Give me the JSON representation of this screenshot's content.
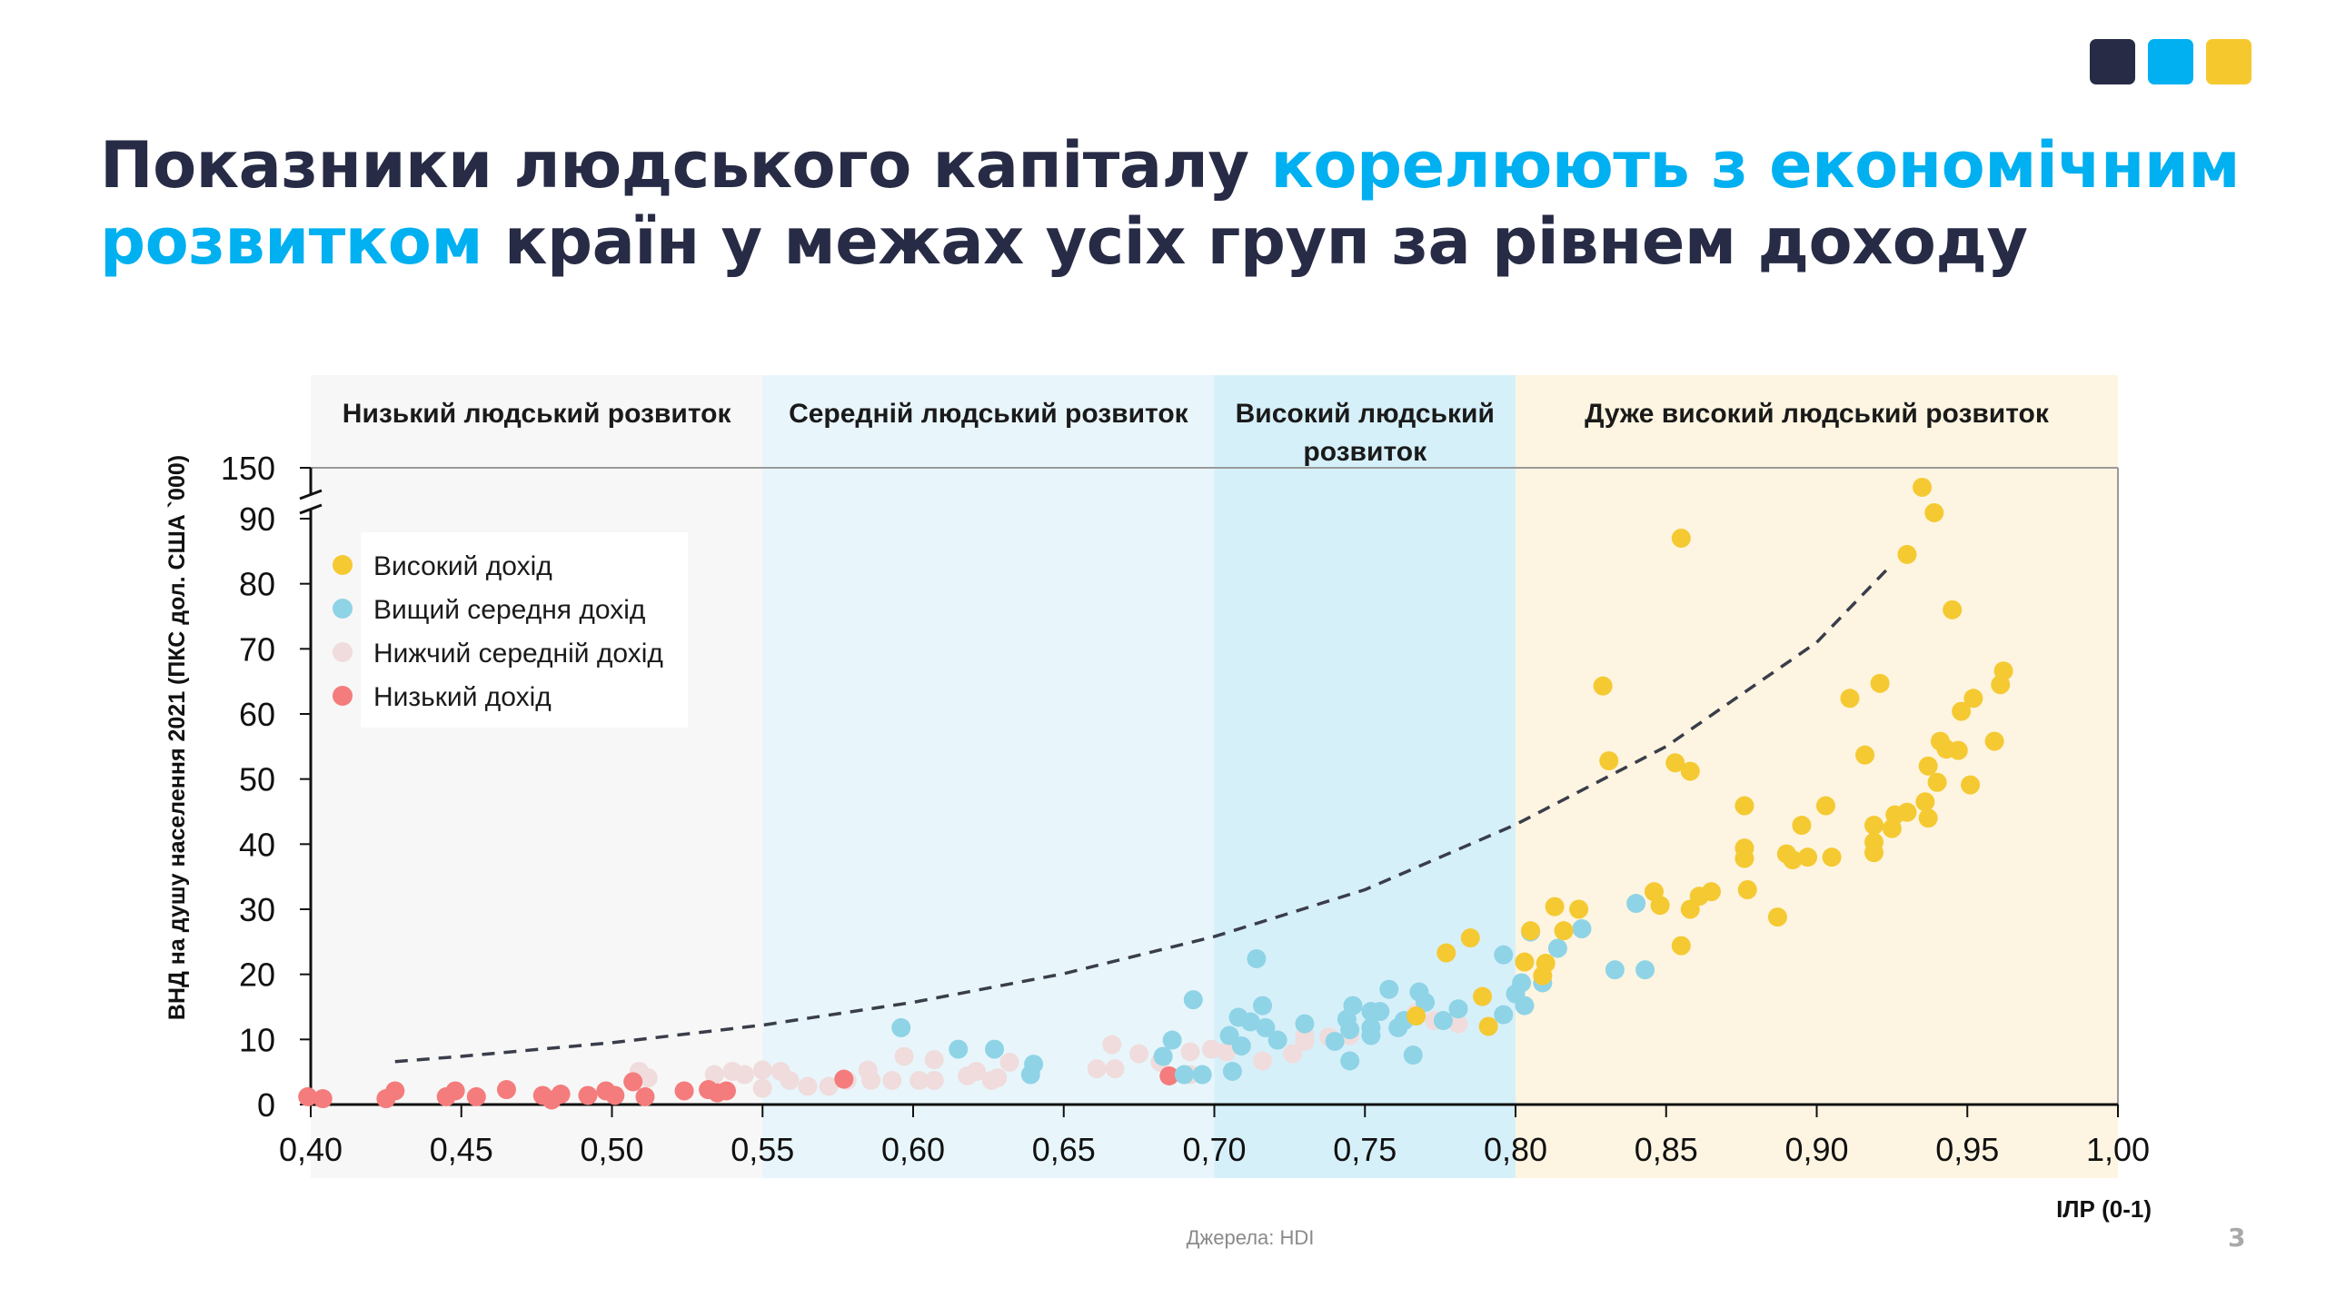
{
  "brand": {
    "colors": [
      "#272b45",
      "#00b0f0",
      "#f5c92e"
    ]
  },
  "title": {
    "part1": "Показники людського капіталу ",
    "part2": "корелюють з економічним розвитком",
    "part3": " країн у межах усіх груп за рівнем доходу",
    "accent_color": "#00b0f0"
  },
  "footer": {
    "source": "Джерела: HDI",
    "page_number": "3"
  },
  "chart_data": {
    "type": "scatter",
    "xlabel": "ІЛР (0-1)",
    "ylabel": "ВНД на душу населення 2021 (ПКС дол. США `000)",
    "xlim": [
      0.4,
      1.0
    ],
    "ylim": [
      0,
      150
    ],
    "y_axis_break": [
      90,
      150
    ],
    "x_ticks": [
      "0,40",
      "0,45",
      "0,50",
      "0,55",
      "0,60",
      "0,65",
      "0,70",
      "0,75",
      "0,80",
      "0,85",
      "0,90",
      "0,95",
      "1,00"
    ],
    "y_ticks": [
      "0",
      "10",
      "20",
      "30",
      "40",
      "50",
      "60",
      "70",
      "80",
      "90",
      "150"
    ],
    "legend_position": "top-left",
    "bands": [
      {
        "label": "Низький людський розвиток",
        "range": [
          0.4,
          0.55
        ],
        "color": "#f7f7f7"
      },
      {
        "label": "Середній людський розвиток",
        "range": [
          0.55,
          0.7
        ],
        "color": "#e8f6fc"
      },
      {
        "label": "Високий людський розвиток",
        "range": [
          0.7,
          0.8
        ],
        "color": "#d6f0fa"
      },
      {
        "label": "Дуже високий людський розвиток",
        "range": [
          0.8,
          1.0
        ],
        "color": "#fdf5e1"
      }
    ],
    "trendline": {
      "style": "dashed",
      "type": "exponential",
      "x": [
        0.428,
        0.45,
        0.5,
        0.55,
        0.6,
        0.65,
        0.7,
        0.75,
        0.8,
        0.85,
        0.9,
        0.925
      ],
      "y": [
        6.6,
        7.4,
        9.5,
        12.2,
        15.7,
        20.1,
        25.8,
        33.0,
        43.0,
        55.0,
        71.0,
        83.0
      ]
    },
    "series": [
      {
        "name": "Високий дохід",
        "color": "#f5c932",
        "points": [
          [
            0.935,
            127
          ],
          [
            0.939,
            97
          ],
          [
            0.855,
            87
          ],
          [
            0.93,
            84.5
          ],
          [
            0.945,
            76
          ],
          [
            0.962,
            66.6
          ],
          [
            0.961,
            64.5
          ],
          [
            0.829,
            64.3
          ],
          [
            0.921,
            64.7
          ],
          [
            0.911,
            62.4
          ],
          [
            0.952,
            62.4
          ],
          [
            0.948,
            60.4
          ],
          [
            0.941,
            55.8
          ],
          [
            0.943,
            54.6
          ],
          [
            0.947,
            54.4
          ],
          [
            0.959,
            55.8
          ],
          [
            0.916,
            53.7
          ],
          [
            0.831,
            52.8
          ],
          [
            0.853,
            52.5
          ],
          [
            0.858,
            51.2
          ],
          [
            0.937,
            52
          ],
          [
            0.94,
            49.5
          ],
          [
            0.951,
            49.1
          ],
          [
            0.876,
            45.9
          ],
          [
            0.903,
            45.9
          ],
          [
            0.93,
            44.9
          ],
          [
            0.926,
            44.5
          ],
          [
            0.937,
            44
          ],
          [
            0.936,
            46.5
          ],
          [
            0.895,
            42.9
          ],
          [
            0.919,
            42.9
          ],
          [
            0.925,
            42.4
          ],
          [
            0.876,
            39.4
          ],
          [
            0.876,
            37.8
          ],
          [
            0.89,
            38.5
          ],
          [
            0.892,
            37.6
          ],
          [
            0.897,
            38
          ],
          [
            0.905,
            38
          ],
          [
            0.919,
            40.3
          ],
          [
            0.919,
            38.7
          ],
          [
            0.846,
            32.7
          ],
          [
            0.848,
            30.6
          ],
          [
            0.861,
            32
          ],
          [
            0.865,
            32.7
          ],
          [
            0.877,
            33
          ],
          [
            0.858,
            30
          ],
          [
            0.887,
            28.8
          ],
          [
            0.813,
            30.4
          ],
          [
            0.821,
            30
          ],
          [
            0.816,
            26.7
          ],
          [
            0.805,
            26.7
          ],
          [
            0.855,
            24.4
          ],
          [
            0.785,
            25.6
          ],
          [
            0.777,
            23.3
          ],
          [
            0.803,
            21.9
          ],
          [
            0.81,
            21.7
          ],
          [
            0.809,
            19.8
          ],
          [
            0.789,
            16.6
          ],
          [
            0.791,
            12
          ],
          [
            0.767,
            13.6
          ]
        ]
      },
      {
        "name": "Вищий середня дохід",
        "color": "#8fd3e6",
        "points": [
          [
            0.84,
            30.9
          ],
          [
            0.822,
            27
          ],
          [
            0.805,
            26.5
          ],
          [
            0.814,
            24
          ],
          [
            0.796,
            23
          ],
          [
            0.714,
            22.4
          ],
          [
            0.833,
            20.7
          ],
          [
            0.843,
            20.7
          ],
          [
            0.809,
            18.7
          ],
          [
            0.802,
            18.7
          ],
          [
            0.803,
            15.2
          ],
          [
            0.8,
            17
          ],
          [
            0.796,
            13.8
          ],
          [
            0.693,
            16.1
          ],
          [
            0.716,
            15.2
          ],
          [
            0.758,
            17.7
          ],
          [
            0.768,
            17.3
          ],
          [
            0.781,
            14.7
          ],
          [
            0.77,
            15.7
          ],
          [
            0.746,
            15.2
          ],
          [
            0.752,
            14.3
          ],
          [
            0.755,
            14.3
          ],
          [
            0.763,
            12.9
          ],
          [
            0.776,
            12.9
          ],
          [
            0.708,
            13.4
          ],
          [
            0.712,
            12.7
          ],
          [
            0.73,
            12.4
          ],
          [
            0.744,
            13.1
          ],
          [
            0.745,
            11.5
          ],
          [
            0.717,
            11.8
          ],
          [
            0.721,
            9.9
          ],
          [
            0.705,
            10.6
          ],
          [
            0.709,
            9
          ],
          [
            0.686,
            9.9
          ],
          [
            0.752,
            11.8
          ],
          [
            0.761,
            11.8
          ],
          [
            0.74,
            9.7
          ],
          [
            0.752,
            10.6
          ],
          [
            0.766,
            7.6
          ],
          [
            0.745,
            6.7
          ],
          [
            0.706,
            5.1
          ],
          [
            0.596,
            11.8
          ],
          [
            0.615,
            8.5
          ],
          [
            0.627,
            8.5
          ],
          [
            0.64,
            6.2
          ],
          [
            0.639,
            4.6
          ],
          [
            0.683,
            7.4
          ],
          [
            0.69,
            4.6
          ],
          [
            0.696,
            4.6
          ]
        ]
      },
      {
        "name": "Нижчий середній дохід",
        "color": "#f0dcdc",
        "points": [
          [
            0.509,
            5.1
          ],
          [
            0.512,
            4.1
          ],
          [
            0.534,
            4.6
          ],
          [
            0.54,
            5.1
          ],
          [
            0.544,
            4.6
          ],
          [
            0.55,
            5.3
          ],
          [
            0.55,
            2.5
          ],
          [
            0.556,
            5.1
          ],
          [
            0.559,
            3.7
          ],
          [
            0.565,
            2.8
          ],
          [
            0.572,
            2.8
          ],
          [
            0.578,
            3.7
          ],
          [
            0.585,
            5.3
          ],
          [
            0.586,
            3.7
          ],
          [
            0.593,
            3.7
          ],
          [
            0.597,
            7.4
          ],
          [
            0.602,
            3.7
          ],
          [
            0.607,
            6.9
          ],
          [
            0.607,
            3.7
          ],
          [
            0.618,
            4.4
          ],
          [
            0.621,
            5.1
          ],
          [
            0.626,
            3.7
          ],
          [
            0.628,
            4.1
          ],
          [
            0.632,
            6.5
          ],
          [
            0.661,
            5.5
          ],
          [
            0.666,
            9.2
          ],
          [
            0.667,
            5.5
          ],
          [
            0.675,
            7.8
          ],
          [
            0.682,
            6.5
          ],
          [
            0.692,
            8.1
          ],
          [
            0.692,
            4.6
          ],
          [
            0.699,
            8.5
          ],
          [
            0.704,
            8.1
          ],
          [
            0.716,
            6.7
          ],
          [
            0.726,
            7.8
          ],
          [
            0.73,
            10.6
          ],
          [
            0.73,
            9.7
          ],
          [
            0.738,
            10.4
          ],
          [
            0.745,
            10.6
          ],
          [
            0.767,
            14.1
          ],
          [
            0.773,
            12.9
          ],
          [
            0.781,
            12.4
          ]
        ]
      },
      {
        "name": "Низький дохід",
        "color": "#f47c7c",
        "points": [
          [
            0.399,
            1.2
          ],
          [
            0.404,
            0.9
          ],
          [
            0.425,
            0.9
          ],
          [
            0.428,
            2.1
          ],
          [
            0.445,
            1.2
          ],
          [
            0.448,
            2.1
          ],
          [
            0.455,
            1.2
          ],
          [
            0.465,
            2.3
          ],
          [
            0.477,
            1.4
          ],
          [
            0.48,
            0.7
          ],
          [
            0.483,
            1.6
          ],
          [
            0.492,
            1.4
          ],
          [
            0.498,
            2.1
          ],
          [
            0.501,
            1.4
          ],
          [
            0.507,
            3.5
          ],
          [
            0.511,
            1.2
          ],
          [
            0.524,
            2.1
          ],
          [
            0.532,
            2.3
          ],
          [
            0.535,
            1.8
          ],
          [
            0.538,
            2.1
          ],
          [
            0.577,
            3.9
          ],
          [
            0.685,
            4.4
          ]
        ]
      }
    ]
  }
}
